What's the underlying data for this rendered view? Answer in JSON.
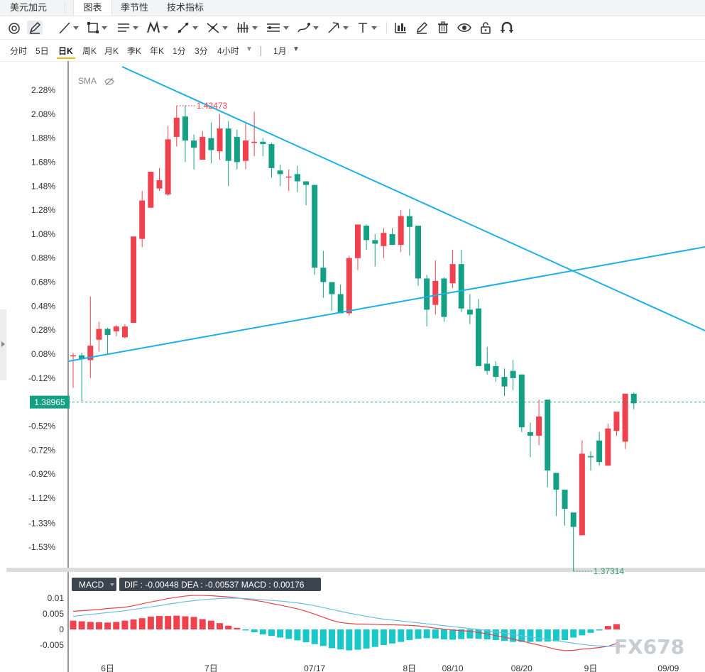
{
  "header": {
    "symbol": "美元加元",
    "tabs": [
      {
        "label": "图表",
        "active": true
      },
      {
        "label": "季节性",
        "active": false
      },
      {
        "label": "技术指标",
        "active": false
      }
    ]
  },
  "toolbar": {
    "tools": [
      {
        "icon": "magnet-circle-icon"
      },
      {
        "icon": "pencil-square-icon"
      },
      {
        "icon": "trend-line-icon",
        "dropdown": true
      },
      {
        "icon": "rectangle-icon",
        "dropdown": true
      },
      {
        "icon": "parallel-lines-icon",
        "dropdown": true
      },
      {
        "icon": "pattern-icon",
        "dropdown": true
      },
      {
        "icon": "measure-icon",
        "dropdown": true
      },
      {
        "icon": "fork-icon",
        "dropdown": true
      },
      {
        "icon": "bars-icon",
        "dropdown": true
      },
      {
        "icon": "levels-icon",
        "dropdown": true
      },
      {
        "icon": "brush-icon",
        "dropdown": true
      },
      {
        "icon": "arrow-icon",
        "dropdown": true
      },
      {
        "icon": "text-icon",
        "dropdown": true
      },
      {
        "icon": "chart-type-icon"
      },
      {
        "icon": "edit-icon"
      },
      {
        "icon": "trash-icon"
      },
      {
        "icon": "eye-icon"
      },
      {
        "icon": "lock-icon"
      },
      {
        "icon": "magnet-icon"
      }
    ]
  },
  "periods": {
    "items": [
      "分时",
      "5日",
      "日K",
      "周K",
      "月K",
      "季K",
      "年K",
      "1分",
      "3分",
      "4小时"
    ],
    "active": "日K",
    "range_label": "1月"
  },
  "colors": {
    "up": "#f0424e",
    "down": "#14a085",
    "trendline": "#1eaee8",
    "dif": "#e4434b",
    "dea": "#6cbde3",
    "macd_up": "#f0424e",
    "macd_down": "#18c8c8"
  },
  "chart_data": {
    "type": "candlestick",
    "legend_label": "SMA",
    "y_ticks": [
      "2.28%",
      "2.08%",
      "1.88%",
      "1.68%",
      "1.48%",
      "1.28%",
      "1.08%",
      "0.88%",
      "0.68%",
      "0.48%",
      "0.28%",
      "0.08%",
      "-0.12%",
      "-0.52%",
      "-0.72%",
      "-0.92%",
      "-1.12%",
      "-1.33%",
      "-1.53%"
    ],
    "current_price_label": "1.38965",
    "current_price_pct": -0.32,
    "high_label": "1.42473",
    "low_label": "1.37314",
    "x_labels": [
      {
        "label": "6日",
        "index": 4
      },
      {
        "label": "7日",
        "index": 16
      },
      {
        "label": "07/17",
        "index": 28
      },
      {
        "label": "8日",
        "index": 39
      },
      {
        "label": "08/10",
        "index": 44
      },
      {
        "label": "08/20",
        "index": 52
      },
      {
        "label": "9日",
        "index": 60
      },
      {
        "label": "09/09",
        "index": 69
      }
    ],
    "candles": [
      [
        0.07,
        0.07,
        0.09,
        -0.2
      ],
      [
        0.07,
        0.04,
        0.09,
        -0.31
      ],
      [
        0.03,
        0.15,
        0.56,
        -0.12
      ],
      [
        0.2,
        0.29,
        0.35,
        0.1
      ],
      [
        0.29,
        0.24,
        0.3,
        0.08
      ],
      [
        0.27,
        0.31,
        0.32,
        0.23
      ],
      [
        0.22,
        0.31,
        0.33,
        0.21
      ],
      [
        0.34,
        1.06,
        1.06,
        0.34
      ],
      [
        1.04,
        1.36,
        1.44,
        0.97
      ],
      [
        1.3,
        1.6,
        1.6,
        1.3
      ],
      [
        1.46,
        1.53,
        1.63,
        1.44
      ],
      [
        1.41,
        1.87,
        1.98,
        1.4
      ],
      [
        1.89,
        2.05,
        2.15,
        1.81
      ],
      [
        2.06,
        1.86,
        2.15,
        1.68
      ],
      [
        1.86,
        1.8,
        1.91,
        1.62
      ],
      [
        1.7,
        1.89,
        1.94,
        1.7
      ],
      [
        1.88,
        1.78,
        2.01,
        1.67
      ],
      [
        1.77,
        1.96,
        2.08,
        1.7
      ],
      [
        1.96,
        1.69,
        2.02,
        1.48
      ],
      [
        1.89,
        1.68,
        1.95,
        1.62
      ],
      [
        1.69,
        1.86,
        2.01,
        1.62
      ],
      [
        1.84,
        1.85,
        2.1,
        1.73
      ],
      [
        1.85,
        1.83,
        1.88,
        1.73
      ],
      [
        1.83,
        1.63,
        1.84,
        1.55
      ],
      [
        1.61,
        1.58,
        1.66,
        1.48
      ],
      [
        1.56,
        1.56,
        1.62,
        1.44
      ],
      [
        1.58,
        1.52,
        1.65,
        1.43
      ],
      [
        1.52,
        1.49,
        1.5,
        1.32
      ],
      [
        1.49,
        0.8,
        1.49,
        0.74
      ],
      [
        0.8,
        0.68,
        0.94,
        0.55
      ],
      [
        0.68,
        0.58,
        0.68,
        0.44
      ],
      [
        0.58,
        0.42,
        0.66,
        0.42
      ],
      [
        0.42,
        0.88,
        0.9,
        0.4
      ],
      [
        0.88,
        1.16,
        1.16,
        0.78
      ],
      [
        1.15,
        1.03,
        1.16,
        0.95
      ],
      [
        1.03,
        1.0,
        1.08,
        0.81
      ],
      [
        0.98,
        1.09,
        1.13,
        0.88
      ],
      [
        1.08,
        0.99,
        1.13,
        0.99
      ],
      [
        0.99,
        1.23,
        1.28,
        0.93
      ],
      [
        1.23,
        1.14,
        1.29,
        0.9
      ],
      [
        1.15,
        0.71,
        1.15,
        0.65
      ],
      [
        0.71,
        0.45,
        0.74,
        0.31
      ],
      [
        0.49,
        0.69,
        0.86,
        0.41
      ],
      [
        0.71,
        0.39,
        0.72,
        0.35
      ],
      [
        0.67,
        0.83,
        0.95,
        0.63
      ],
      [
        0.83,
        0.46,
        0.95,
        0.43
      ],
      [
        0.45,
        0.41,
        0.58,
        0.33
      ],
      [
        0.46,
        -0.02,
        0.54,
        -0.02
      ],
      [
        0.0,
        -0.06,
        0.14,
        -0.09
      ],
      [
        -0.02,
        -0.11,
        0.02,
        -0.15
      ],
      [
        -0.11,
        -0.19,
        -0.04,
        -0.27
      ],
      [
        -0.06,
        -0.12,
        0.03,
        -0.22
      ],
      [
        -0.09,
        -0.53,
        -0.09,
        -0.57
      ],
      [
        -0.57,
        -0.6,
        -0.49,
        -0.78
      ],
      [
        -0.6,
        -0.44,
        -0.3,
        -0.68
      ],
      [
        -0.3,
        -0.89,
        -0.3,
        -1.03
      ],
      [
        -0.91,
        -1.05,
        -1.01,
        -1.27
      ],
      [
        -1.05,
        -1.21,
        -1.21,
        -1.35
      ],
      [
        -1.24,
        -1.36,
        -1.36,
        -1.73
      ],
      [
        -1.43,
        -0.75,
        -0.64,
        -1.34
      ],
      [
        -0.77,
        -0.78,
        -0.73,
        -0.89
      ],
      [
        -0.64,
        -0.82,
        -0.57,
        -0.85
      ],
      [
        -0.85,
        -0.54,
        -0.5,
        -0.85
      ],
      [
        -0.56,
        -0.4,
        -0.52,
        -0.6
      ],
      [
        -0.65,
        -0.25,
        -0.25,
        -0.71
      ],
      [
        -0.25,
        -0.33,
        -0.24,
        -0.38
      ]
    ]
  },
  "macd": {
    "label": "MACD",
    "dif_label": "DIF : -0.00448",
    "dea_label": "DEA : -0.00537",
    "macd_label": "MACD : 0.00176",
    "y_ticks": [
      "0.01",
      "0.005",
      "0",
      "-0.005"
    ],
    "y_values": [
      0.01,
      0.005,
      0,
      -0.005
    ],
    "hist": [
      0.0028,
      0.0026,
      0.0024,
      0.0023,
      0.0022,
      0.0024,
      0.0028,
      0.0032,
      0.0036,
      0.0041,
      0.0043,
      0.0043,
      0.0044,
      0.0042,
      0.004,
      0.0033,
      0.0028,
      0.002,
      0.0012,
      0.0005,
      -0.0002,
      -0.0009,
      -0.0016,
      -0.0021,
      -0.0026,
      -0.003,
      -0.0035,
      -0.0041,
      -0.0047,
      -0.0053,
      -0.006,
      -0.0064,
      -0.0067,
      -0.0065,
      -0.0061,
      -0.0056,
      -0.005,
      -0.0045,
      -0.004,
      -0.0034,
      -0.003,
      -0.0028,
      -0.0029,
      -0.0032,
      -0.0033,
      -0.0031,
      -0.0029,
      -0.003,
      -0.0032,
      -0.0034,
      -0.0037,
      -0.004,
      -0.004,
      -0.004,
      -0.0039,
      -0.0039,
      -0.0038,
      -0.0034,
      -0.0026,
      -0.0019,
      -0.0011,
      -0.0003,
      0.0011,
      0.0017
    ],
    "dif": [
      0.0058,
      0.006,
      0.0062,
      0.0064,
      0.0067,
      0.0069,
      0.0071,
      0.0076,
      0.0082,
      0.0088,
      0.0093,
      0.0099,
      0.0103,
      0.0107,
      0.0109,
      0.0109,
      0.0108,
      0.0106,
      0.0104,
      0.0101,
      0.0097,
      0.0093,
      0.0089,
      0.0083,
      0.0078,
      0.0072,
      0.0066,
      0.0058,
      0.0049,
      0.0039,
      0.0029,
      0.0022,
      0.0019,
      0.0017,
      0.0017,
      0.0016,
      0.0015,
      0.0015,
      0.0014,
      0.0013,
      0.0011,
      0.0008,
      0.0004,
      0.0001,
      -0.0002,
      -0.0004,
      -0.0006,
      -0.001,
      -0.0014,
      -0.002,
      -0.0025,
      -0.0031,
      -0.0037,
      -0.0044,
      -0.005,
      -0.0057,
      -0.0064,
      -0.0068,
      -0.0067,
      -0.0063,
      -0.0061,
      -0.0058,
      -0.0054,
      -0.0045
    ],
    "dea": [
      0.0042,
      0.0045,
      0.0048,
      0.0051,
      0.0054,
      0.0057,
      0.006,
      0.0064,
      0.0068,
      0.0072,
      0.0076,
      0.0081,
      0.0085,
      0.0089,
      0.0092,
      0.0095,
      0.0097,
      0.0099,
      0.01,
      0.01,
      0.0099,
      0.0097,
      0.0095,
      0.0093,
      0.0091,
      0.0088,
      0.0085,
      0.0081,
      0.0076,
      0.007,
      0.0064,
      0.0058,
      0.0052,
      0.0047,
      0.0042,
      0.0037,
      0.0033,
      0.003,
      0.0027,
      0.0024,
      0.0021,
      0.0018,
      0.0015,
      0.0012,
      0.0009,
      0.0006,
      0.0003,
      0.0,
      -0.0004,
      -0.0008,
      -0.0012,
      -0.0016,
      -0.002,
      -0.0024,
      -0.0028,
      -0.0032,
      -0.0036,
      -0.004,
      -0.0044,
      -0.0048,
      -0.0051,
      -0.0053,
      -0.0054,
      -0.0053
    ]
  },
  "watermark": "FX678"
}
